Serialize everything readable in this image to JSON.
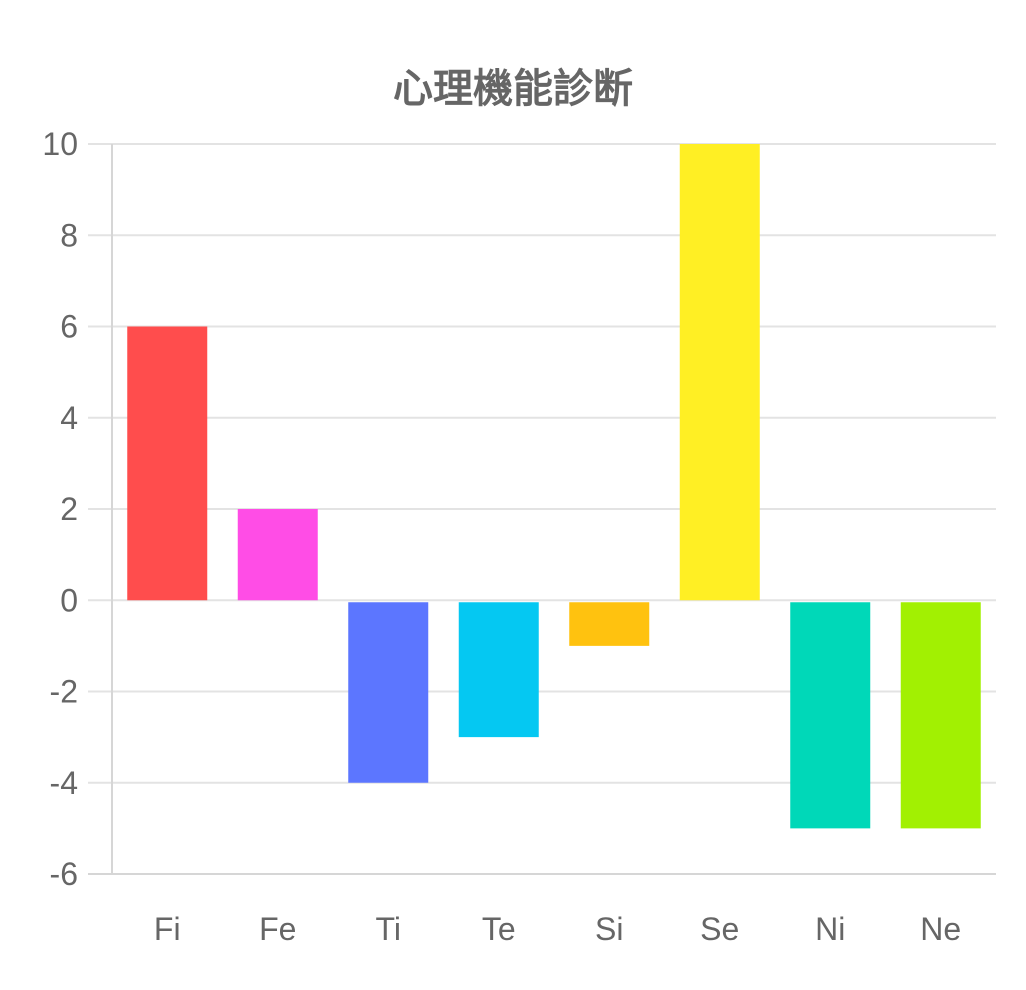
{
  "chart_data": {
    "type": "bar",
    "title": "心理機能診断",
    "categories": [
      "Fi",
      "Fe",
      "Ti",
      "Te",
      "Si",
      "Se",
      "Ni",
      "Ne"
    ],
    "values": [
      6,
      2,
      -4,
      -3,
      -1,
      10,
      -5,
      -5
    ],
    "colors": [
      "#ff4d4d",
      "#ff4de6",
      "#5c76ff",
      "#05c8f2",
      "#ffc20f",
      "#ffef24",
      "#00d8b8",
      "#a2f002"
    ],
    "ylim": [
      -6,
      10
    ],
    "yticks": [
      10,
      8,
      6,
      4,
      2,
      0,
      -2,
      -4,
      -6
    ],
    "grid": true,
    "xlabel": "",
    "ylabel": ""
  }
}
